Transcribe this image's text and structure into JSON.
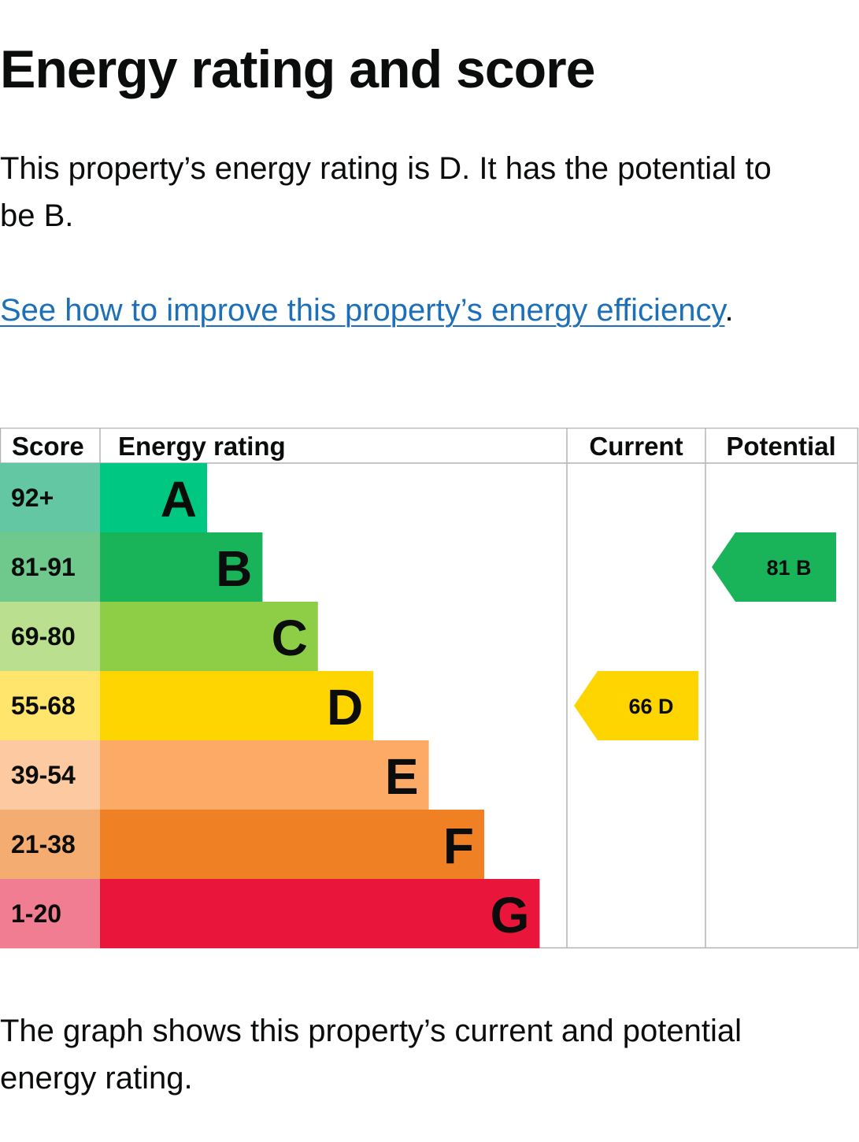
{
  "title": "Energy rating and score",
  "summary": "This property’s energy rating is D. It has the potential to be B.",
  "improve_link": "See how to improve this property’s energy efficiency",
  "improve_link_suffix": ".",
  "footer": "The graph shows this property’s current and potential energy rating.",
  "chart_data": {
    "type": "bar",
    "columns": [
      "Score",
      "Energy rating",
      "Current",
      "Potential"
    ],
    "bands": [
      {
        "score": "92+",
        "rating": "A",
        "color": "#00c781",
        "score_color": "#64c7a3"
      },
      {
        "score": "81-91",
        "rating": "B",
        "color": "#19b459",
        "score_color": "#6fc98d"
      },
      {
        "score": "69-80",
        "rating": "C",
        "color": "#8dce46",
        "score_color": "#badf8f"
      },
      {
        "score": "55-68",
        "rating": "D",
        "color": "#ffd500",
        "score_color": "#ffe56b"
      },
      {
        "score": "39-54",
        "rating": "E",
        "color": "#fcaa65",
        "score_color": "#fdc9a0"
      },
      {
        "score": "21-38",
        "rating": "F",
        "color": "#ef8023",
        "score_color": "#f4ac70"
      },
      {
        "score": "1-20",
        "rating": "G",
        "color": "#e9153b",
        "score_color": "#f17d93"
      }
    ],
    "current": {
      "score": 66,
      "rating": "D",
      "label": "66  D",
      "color": "#ffd500"
    },
    "potential": {
      "score": 81,
      "rating": "B",
      "label": "81  B",
      "color": "#19b459"
    }
  }
}
